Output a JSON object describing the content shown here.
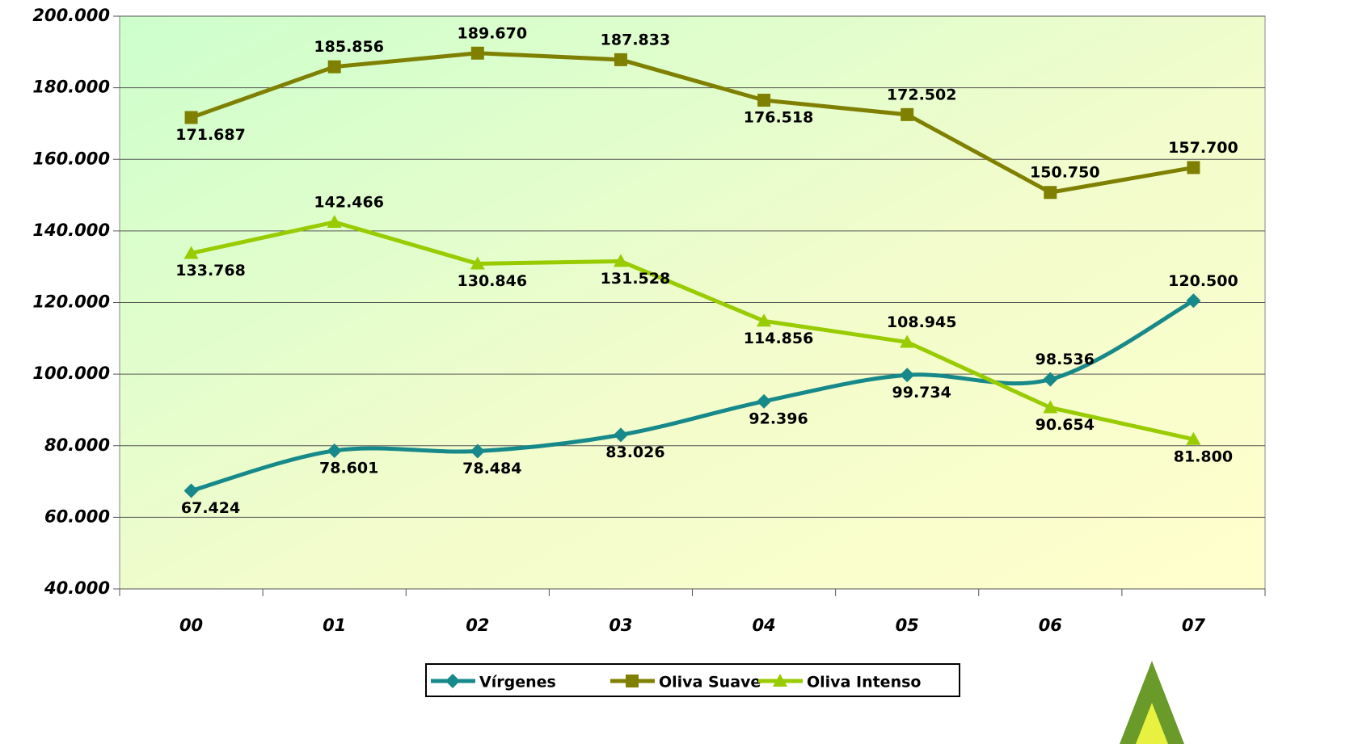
{
  "chart_data": {
    "type": "line",
    "categories": [
      "00",
      "01",
      "02",
      "03",
      "04",
      "05",
      "06",
      "07"
    ],
    "series": [
      {
        "name": "Vírgenes",
        "color": "#17898a",
        "marker": "diamond",
        "smooth": true,
        "values": [
          67424,
          78601,
          78484,
          83026,
          92396,
          99734,
          98536,
          120500
        ],
        "value_labels": [
          "67.424",
          "78.601",
          "78.484",
          "83.026",
          "92.396",
          "99.734",
          "98.536",
          "120.500"
        ]
      },
      {
        "name": "Oliva Suave",
        "color": "#808000",
        "marker": "square",
        "smooth": false,
        "values": [
          171687,
          185856,
          189670,
          187833,
          176518,
          172502,
          150750,
          157700
        ],
        "value_labels": [
          "171.687",
          "185.856",
          "189.670",
          "187.833",
          "176.518",
          "172.502",
          "150.750",
          "157.700"
        ]
      },
      {
        "name": "Oliva Intenso",
        "color": "#99cc00",
        "marker": "triangle",
        "smooth": false,
        "values": [
          133768,
          142466,
          130846,
          131528,
          114856,
          108945,
          90654,
          81800
        ],
        "value_labels": [
          "133.768",
          "142.466",
          "130.846",
          "131.528",
          "114.856",
          "108.945",
          "90.654",
          "81.800"
        ]
      }
    ],
    "ylim": [
      40000,
      200000
    ],
    "yticks": [
      {
        "value": 40000,
        "label": "40.000"
      },
      {
        "value": 60000,
        "label": "60.000"
      },
      {
        "value": 80000,
        "label": "80.000"
      },
      {
        "value": 100000,
        "label": "100.000"
      },
      {
        "value": 120000,
        "label": "120.000"
      },
      {
        "value": 140000,
        "label": "140.000"
      },
      {
        "value": 160000,
        "label": "160.000"
      },
      {
        "value": 180000,
        "label": "180.000"
      },
      {
        "value": 200000,
        "label": "200.000"
      }
    ],
    "grid": true,
    "legend": "bottom"
  }
}
